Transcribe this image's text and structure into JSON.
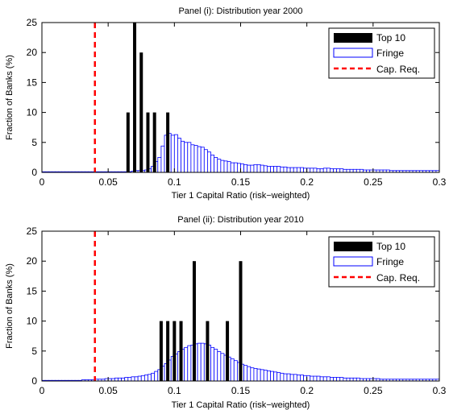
{
  "chart_data": [
    {
      "type": "bar",
      "title": "Panel (i): Distribution year 2000",
      "xlabel": "Tier 1 Capital Ratio (risk−weighted)",
      "ylabel": "Fraction of Banks (%)",
      "xlim": [
        0,
        0.3
      ],
      "ylim": [
        0,
        25
      ],
      "xticks": [
        "0",
        "0.05",
        "0.1",
        "0.15",
        "0.2",
        "0.25",
        "0.3"
      ],
      "yticks": [
        "0",
        "5",
        "10",
        "15",
        "20",
        "25"
      ],
      "legend_position": "top-right",
      "legend": [
        "Top 10",
        "Fringe",
        "Cap. Req."
      ],
      "cap_req": 0.04,
      "series": [
        {
          "name": "Top 10",
          "color": "#000000",
          "x": [
            0.065,
            0.07,
            0.075,
            0.08,
            0.085,
            0.095
          ],
          "values": [
            10,
            25,
            20,
            10,
            10,
            10
          ]
        },
        {
          "name": "Fringe",
          "color": "#0000ff",
          "x": [
            0.0,
            0.0025,
            0.005,
            0.0075,
            0.01,
            0.0125,
            0.015,
            0.0175,
            0.02,
            0.0225,
            0.025,
            0.0275,
            0.03,
            0.0325,
            0.035,
            0.0375,
            0.04,
            0.0425,
            0.045,
            0.0475,
            0.05,
            0.0525,
            0.055,
            0.0575,
            0.06,
            0.0625,
            0.065,
            0.0675,
            0.07,
            0.0725,
            0.075,
            0.0775,
            0.08,
            0.0825,
            0.085,
            0.0875,
            0.09,
            0.0925,
            0.095,
            0.0975,
            0.1,
            0.1025,
            0.105,
            0.1075,
            0.11,
            0.1125,
            0.115,
            0.1175,
            0.12,
            0.1225,
            0.125,
            0.1275,
            0.13,
            0.1325,
            0.135,
            0.1375,
            0.14,
            0.1425,
            0.145,
            0.1475,
            0.15,
            0.1525,
            0.155,
            0.1575,
            0.16,
            0.1625,
            0.165,
            0.1675,
            0.17,
            0.1725,
            0.175,
            0.1775,
            0.18,
            0.1825,
            0.185,
            0.1875,
            0.19,
            0.1925,
            0.195,
            0.1975,
            0.2,
            0.2025,
            0.205,
            0.2075,
            0.21,
            0.2125,
            0.215,
            0.2175,
            0.22,
            0.2225,
            0.225,
            0.2275,
            0.23,
            0.2325,
            0.235,
            0.2375,
            0.24,
            0.2425,
            0.245,
            0.2475,
            0.25,
            0.2525,
            0.255,
            0.2575,
            0.26,
            0.2625,
            0.265,
            0.2675,
            0.27,
            0.2725,
            0.275,
            0.2775,
            0.28,
            0.2825,
            0.285,
            0.2875,
            0.29,
            0.2925,
            0.295,
            0.2975
          ],
          "values": [
            0.1,
            0.1,
            0.1,
            0.1,
            0.1,
            0.1,
            0.1,
            0.1,
            0.1,
            0.1,
            0.1,
            0.1,
            0.1,
            0.1,
            0.1,
            0.1,
            0.1,
            0.1,
            0.1,
            0.1,
            0.1,
            0.1,
            0.1,
            0.1,
            0.1,
            0.1,
            0.1,
            0.2,
            0.3,
            0.3,
            0.3,
            0.4,
            0.6,
            1.0,
            1.8,
            2.5,
            4.4,
            6.2,
            6.5,
            6.2,
            6.3,
            5.7,
            5.2,
            5.0,
            5.0,
            4.6,
            4.5,
            4.3,
            4.2,
            3.8,
            3.4,
            2.9,
            2.5,
            2.2,
            2.0,
            1.9,
            1.8,
            1.6,
            1.6,
            1.5,
            1.4,
            1.3,
            1.2,
            1.2,
            1.3,
            1.3,
            1.2,
            1.1,
            1.0,
            1.0,
            1.0,
            1.0,
            0.9,
            0.9,
            0.8,
            0.8,
            0.8,
            0.8,
            0.8,
            0.7,
            0.7,
            0.7,
            0.7,
            0.6,
            0.6,
            0.7,
            0.7,
            0.6,
            0.6,
            0.6,
            0.6,
            0.5,
            0.5,
            0.5,
            0.5,
            0.5,
            0.5,
            0.4,
            0.4,
            0.4,
            0.4,
            0.4,
            0.4,
            0.4,
            0.4,
            0.3,
            0.3,
            0.3,
            0.3,
            0.3,
            0.3,
            0.3,
            0.3,
            0.3,
            0.3,
            0.3,
            0.3,
            0.3,
            0.3,
            0.3
          ]
        }
      ]
    },
    {
      "type": "bar",
      "title": "Panel (ii): Distribution year 2010",
      "xlabel": "Tier 1 Capital Ratio (risk−weighted)",
      "ylabel": "Fraction of Banks (%)",
      "xlim": [
        0,
        0.3
      ],
      "ylim": [
        0,
        25
      ],
      "xticks": [
        "0",
        "0.05",
        "0.1",
        "0.15",
        "0.2",
        "0.25",
        "0.3"
      ],
      "yticks": [
        "0",
        "5",
        "10",
        "15",
        "20",
        "25"
      ],
      "legend_position": "top-right",
      "legend": [
        "Top 10",
        "Fringe",
        "Cap. Req."
      ],
      "cap_req": 0.04,
      "series": [
        {
          "name": "Top 10",
          "color": "#000000",
          "x": [
            0.09,
            0.095,
            0.1,
            0.105,
            0.115,
            0.125,
            0.14,
            0.15
          ],
          "values": [
            10,
            10,
            10,
            10,
            20,
            10,
            10,
            20
          ]
        },
        {
          "name": "Fringe",
          "color": "#0000ff",
          "x": [
            0.0,
            0.0025,
            0.005,
            0.0075,
            0.01,
            0.0125,
            0.015,
            0.0175,
            0.02,
            0.0225,
            0.025,
            0.0275,
            0.03,
            0.0325,
            0.035,
            0.0375,
            0.04,
            0.0425,
            0.045,
            0.0475,
            0.05,
            0.0525,
            0.055,
            0.0575,
            0.06,
            0.0625,
            0.065,
            0.0675,
            0.07,
            0.0725,
            0.075,
            0.0775,
            0.08,
            0.0825,
            0.085,
            0.0875,
            0.09,
            0.0925,
            0.095,
            0.0975,
            0.1,
            0.1025,
            0.105,
            0.1075,
            0.11,
            0.1125,
            0.115,
            0.1175,
            0.12,
            0.1225,
            0.125,
            0.1275,
            0.13,
            0.1325,
            0.135,
            0.1375,
            0.14,
            0.1425,
            0.145,
            0.1475,
            0.15,
            0.1525,
            0.155,
            0.1575,
            0.16,
            0.1625,
            0.165,
            0.1675,
            0.17,
            0.1725,
            0.175,
            0.1775,
            0.18,
            0.1825,
            0.185,
            0.1875,
            0.19,
            0.1925,
            0.195,
            0.1975,
            0.2,
            0.2025,
            0.205,
            0.2075,
            0.21,
            0.2125,
            0.215,
            0.2175,
            0.22,
            0.2225,
            0.225,
            0.2275,
            0.23,
            0.2325,
            0.235,
            0.2375,
            0.24,
            0.2425,
            0.245,
            0.2475,
            0.25,
            0.2525,
            0.255,
            0.2575,
            0.26,
            0.2625,
            0.265,
            0.2675,
            0.27,
            0.2725,
            0.275,
            0.2775,
            0.28,
            0.2825,
            0.285,
            0.2875,
            0.29,
            0.2925,
            0.295,
            0.2975
          ],
          "values": [
            0.1,
            0.1,
            0.1,
            0.1,
            0.1,
            0.1,
            0.1,
            0.1,
            0.1,
            0.1,
            0.1,
            0.1,
            0.2,
            0.2,
            0.2,
            0.2,
            0.3,
            0.3,
            0.3,
            0.4,
            0.4,
            0.4,
            0.5,
            0.5,
            0.5,
            0.6,
            0.6,
            0.7,
            0.7,
            0.8,
            0.9,
            1.0,
            1.1,
            1.3,
            1.6,
            1.9,
            2.5,
            2.9,
            3.5,
            4.1,
            4.5,
            4.9,
            5.3,
            5.6,
            5.9,
            6.0,
            6.2,
            6.3,
            6.3,
            6.2,
            6.0,
            5.6,
            5.3,
            4.9,
            4.6,
            4.3,
            4.0,
            3.7,
            3.4,
            3.1,
            2.8,
            2.6,
            2.4,
            2.2,
            2.1,
            2.0,
            1.9,
            1.8,
            1.7,
            1.6,
            1.5,
            1.4,
            1.3,
            1.2,
            1.2,
            1.1,
            1.1,
            1.0,
            1.0,
            0.9,
            0.9,
            0.8,
            0.8,
            0.8,
            0.7,
            0.7,
            0.7,
            0.6,
            0.6,
            0.6,
            0.6,
            0.5,
            0.5,
            0.5,
            0.5,
            0.5,
            0.4,
            0.4,
            0.4,
            0.4,
            0.4,
            0.4,
            0.3,
            0.3,
            0.3,
            0.3,
            0.3,
            0.3,
            0.3,
            0.3,
            0.3,
            0.3,
            0.3,
            0.3,
            0.3,
            0.3,
            0.3,
            0.3,
            0.3,
            0.3
          ]
        }
      ]
    }
  ]
}
